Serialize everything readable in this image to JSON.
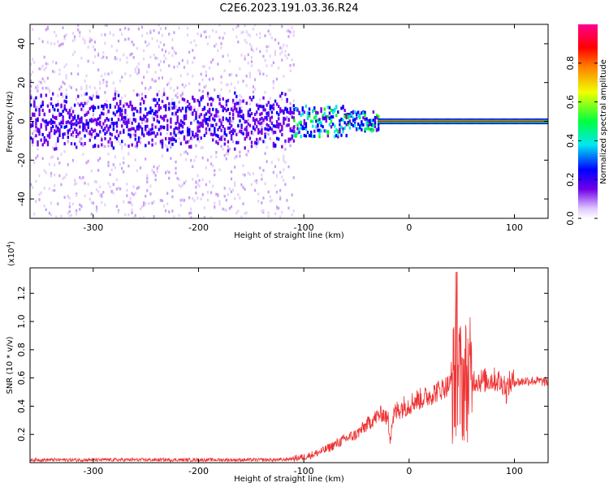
{
  "title": "C2E6.2023.191.03.36.R24",
  "chart_data": [
    {
      "type": "heatmap",
      "xlabel": "Height of straight line (km)",
      "ylabel": "Frequency (Hz)",
      "xlim": [
        -360,
        132
      ],
      "ylim": [
        -50,
        50
      ],
      "xticks": [
        -300,
        -200,
        -100,
        0,
        100
      ],
      "xtick_labels": [
        "-300",
        "-200",
        "-100",
        "0",
        "100"
      ],
      "yticks": [
        -40,
        -20,
        0,
        20,
        40
      ],
      "ytick_labels": [
        "-40",
        "-20",
        "0",
        "20",
        "40"
      ],
      "colorbar": {
        "label": "Normalized spectral amplitude",
        "range": [
          0.0,
          1.0
        ],
        "ticks": [
          0.0,
          0.2,
          0.4,
          0.6,
          0.8
        ],
        "tick_labels": [
          "0.0",
          "0.2",
          "0.4",
          "0.6",
          "0.8"
        ],
        "colormap": "rainbow",
        "colors": [
          "#ffffff",
          "#d8b8f8",
          "#7000e8",
          "#0000ff",
          "#00e8e8",
          "#00ff00",
          "#ffff00",
          "#ff8000",
          "#ff0000",
          "#ff0080"
        ]
      },
      "regions": [
        {
          "x_range": [
            -360,
            -110
          ],
          "description_level": "noise",
          "line_freq": 0,
          "core_halfwidth_hz": 12,
          "amplitude": 0.1
        },
        {
          "x_range": [
            -110,
            -30
          ],
          "description_level": "transition",
          "line_freq": 0,
          "core_halfwidth_hz": 5,
          "amplitude": 0.45
        },
        {
          "x_range": [
            -30,
            132
          ],
          "description_level": "strong_line",
          "line_freq": 0,
          "core_halfwidth_hz": 1.5,
          "amplitude": 0.9
        }
      ]
    },
    {
      "type": "line",
      "xlabel": "Height of straight line (km)",
      "ylabel": "SNR (10 * v/v)",
      "y_multiplier_label": "(x10",
      "y_multiplier_exp": "4",
      "xlim": [
        -360,
        132
      ],
      "ylim": [
        0.0,
        1.38
      ],
      "xticks": [
        -300,
        -200,
        -100,
        0,
        100
      ],
      "xtick_labels": [
        "-300",
        "-200",
        "-100",
        "0",
        "100"
      ],
      "yticks": [
        0.2,
        0.4,
        0.6,
        0.8,
        1.0,
        1.2
      ],
      "ytick_labels": [
        "0.2",
        "0.4",
        "0.6",
        "0.8",
        "1.0",
        "1.2"
      ],
      "series": [
        {
          "color": "#ee3333",
          "x": [
            -360,
            -300,
            -200,
            -120,
            -100,
            -90,
            -80,
            -70,
            -60,
            -50,
            -40,
            -35,
            -30,
            -25,
            -20,
            -18,
            -15,
            -10,
            -5,
            0,
            5,
            10,
            15,
            20,
            25,
            30,
            35,
            40,
            44,
            46,
            48,
            50,
            52,
            55,
            60,
            70,
            80,
            85,
            88,
            90,
            92,
            95,
            100,
            105,
            110,
            120,
            132
          ],
          "y": [
            0.02,
            0.02,
            0.02,
            0.02,
            0.04,
            0.06,
            0.09,
            0.13,
            0.17,
            0.2,
            0.27,
            0.3,
            0.33,
            0.35,
            0.3,
            0.2,
            0.33,
            0.38,
            0.4,
            0.41,
            0.44,
            0.45,
            0.46,
            0.48,
            0.5,
            0.52,
            0.54,
            0.56,
            0.57,
            0.62,
            0.58,
            0.56,
            0.58,
            0.59,
            0.59,
            0.58,
            0.59,
            0.58,
            0.55,
            0.58,
            0.5,
            0.56,
            0.58,
            0.57,
            0.58,
            0.58,
            0.57
          ]
        }
      ]
    }
  ]
}
